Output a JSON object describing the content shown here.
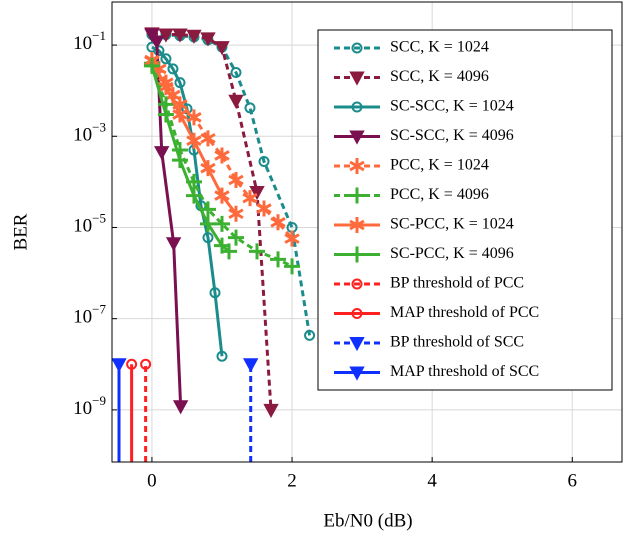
{
  "chart_data": {
    "type": "line",
    "x_label": "Eb/N0 (dB)",
    "y_label": "BER",
    "log_y": true,
    "grid": true,
    "xlim": [
      -0.57,
      6.71
    ],
    "ylim": [
      0.88,
      7.2e-11
    ],
    "xticks": [
      0,
      2,
      4,
      6
    ],
    "yticks": [
      {
        "value": 0.1,
        "label": "10−1"
      },
      {
        "value": 0.001,
        "label": "10−3"
      },
      {
        "value": 1e-05,
        "label": "10−5"
      },
      {
        "value": 1e-07,
        "label": "10−7"
      },
      {
        "value": 1e-09,
        "label": "10−9"
      }
    ],
    "series": [
      {
        "name": "SCC, K = 1024",
        "color": "#1a8c8c",
        "dash": true,
        "marker": "circle",
        "x": [
          0,
          0.2,
          0.4,
          0.6,
          0.8,
          1.0,
          1.2,
          1.4,
          1.6,
          2.0,
          2.25
        ],
        "values": [
          0.17,
          0.17,
          0.16,
          0.15,
          0.13,
          0.09,
          0.025,
          0.0042,
          0.00028,
          1e-05,
          4.3e-08
        ]
      },
      {
        "name": "SCC, K = 4096",
        "color": "#8b1a3f",
        "dash": true,
        "marker": "triangle",
        "x": [
          0,
          0.2,
          0.4,
          0.6,
          0.8,
          1.0,
          1.2,
          1.5,
          1.7
        ],
        "values": [
          0.18,
          0.17,
          0.17,
          0.16,
          0.14,
          0.09,
          0.006,
          6e-05,
          1e-09
        ]
      },
      {
        "name": "SC-SCC, K = 1024",
        "color": "#1a8c8c",
        "dash": false,
        "marker": "circle",
        "x": [
          0,
          0.1,
          0.2,
          0.3,
          0.4,
          0.5,
          0.6,
          0.7,
          0.8,
          0.9,
          1.0
        ],
        "values": [
          0.09,
          0.075,
          0.05,
          0.03,
          0.015,
          0.004,
          0.0005,
          3e-05,
          6e-06,
          3.7e-07,
          1.5e-08
        ]
      },
      {
        "name": "SC-SCC, K = 4096",
        "color": "#7a1050",
        "dash": false,
        "marker": "triangle",
        "x": [
          0,
          0.07,
          0.14,
          0.31,
          0.41
        ],
        "values": [
          0.17,
          0.12,
          0.00045,
          4.5e-06,
          1.2e-09
        ]
      },
      {
        "name": "PCC, K = 1024",
        "color": "#ff6a3d",
        "dash": true,
        "marker": "star",
        "x": [
          0,
          0.1,
          0.2,
          0.3,
          0.4,
          0.6,
          0.8,
          1.0,
          1.2,
          1.4,
          1.6,
          1.8,
          2.0
        ],
        "values": [
          0.047,
          0.03,
          0.015,
          0.008,
          0.005,
          0.0026,
          0.0009,
          0.00038,
          0.00011,
          4.4e-05,
          2.6e-05,
          1.3e-05,
          5.7e-06
        ]
      },
      {
        "name": "PCC, K = 4096",
        "color": "#3cb030",
        "dash": true,
        "marker": "plus",
        "x": [
          0,
          0.2,
          0.4,
          0.6,
          0.8,
          1.0,
          1.2,
          1.5,
          1.8,
          2.0
        ],
        "values": [
          0.04,
          0.005,
          0.0005,
          0.0001,
          2.5e-05,
          1.2e-05,
          6e-06,
          3e-06,
          2e-06,
          1.4e-06
        ]
      },
      {
        "name": "SC-PCC, K = 1024",
        "color": "#ff6a3d",
        "dash": false,
        "marker": "star",
        "x": [
          0,
          0.2,
          0.4,
          0.6,
          0.8,
          1.0,
          1.2
        ],
        "values": [
          0.045,
          0.012,
          0.003,
          0.0008,
          0.0002,
          5e-05,
          2e-05
        ]
      },
      {
        "name": "SC-PCC, K = 4096",
        "color": "#3cb030",
        "dash": false,
        "marker": "plus",
        "x": [
          0,
          0.2,
          0.4,
          0.6,
          0.8,
          1.0,
          1.1
        ],
        "values": [
          0.035,
          0.003,
          0.0003,
          5e-05,
          1.2e-05,
          4e-06,
          3e-06
        ]
      },
      {
        "name": "BP threshold of PCC",
        "color": "#ff2020",
        "dash": true,
        "marker": "circle",
        "stem": true,
        "x": [
          -0.09
        ],
        "values": [
          1e-08
        ]
      },
      {
        "name": "MAP threshold of PCC",
        "color": "#ff2020",
        "dash": false,
        "marker": "circle",
        "stem": true,
        "x": [
          -0.29
        ],
        "values": [
          1e-08
        ]
      },
      {
        "name": "BP threshold of SCC",
        "color": "#1030ff",
        "dash": true,
        "marker": "triangle",
        "stem": true,
        "x": [
          1.41
        ],
        "values": [
          1e-08
        ]
      },
      {
        "name": "MAP threshold of SCC",
        "color": "#1030ff",
        "dash": false,
        "marker": "triangle",
        "stem": true,
        "x": [
          -0.47
        ],
        "values": [
          1e-08
        ]
      }
    ]
  }
}
